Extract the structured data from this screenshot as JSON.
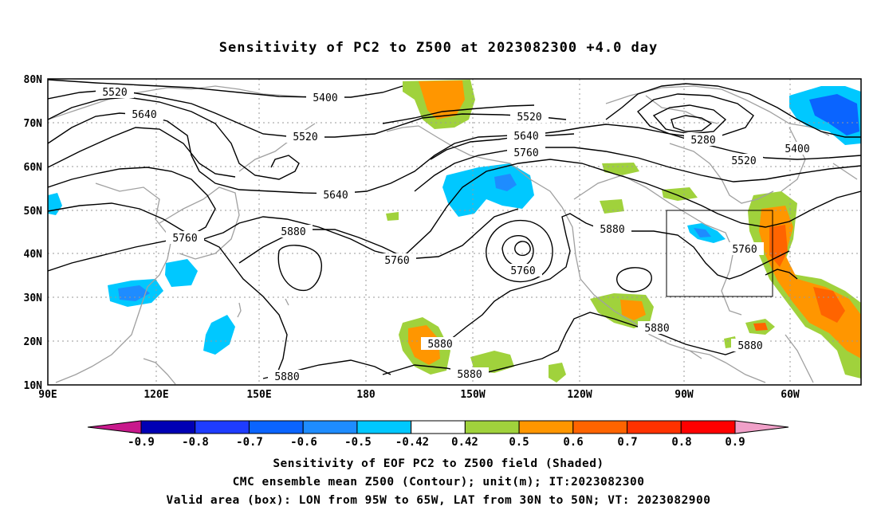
{
  "title": "Sensitivity of PC2 to Z500 at 2023082300 +4.0 day",
  "lat_labels": [
    "80N",
    "70N",
    "60N",
    "50N",
    "40N",
    "30N",
    "20N",
    "10N"
  ],
  "lon_labels": [
    "90E",
    "120E",
    "150E",
    "180",
    "150W",
    "120W",
    "90W",
    "60W"
  ],
  "contour_labels": [
    {
      "text": "5520"
    },
    {
      "text": "5400"
    },
    {
      "text": "5640"
    },
    {
      "text": "5520"
    },
    {
      "text": "5520"
    },
    {
      "text": "5640"
    },
    {
      "text": "5760"
    },
    {
      "text": "5280"
    },
    {
      "text": "5400"
    },
    {
      "text": "5520"
    },
    {
      "text": "5640"
    },
    {
      "text": "5760"
    },
    {
      "text": "5880"
    },
    {
      "text": "5880"
    },
    {
      "text": "5760"
    },
    {
      "text": "5760"
    },
    {
      "text": "5760"
    },
    {
      "text": "5880"
    },
    {
      "text": "5880"
    },
    {
      "text": "5880"
    },
    {
      "text": "5880"
    },
    {
      "text": "5880"
    }
  ],
  "colorbar": {
    "labels": [
      "-0.9",
      "-0.8",
      "-0.7",
      "-0.6",
      "-0.5",
      "-0.42",
      "0.42",
      "0.5",
      "0.6",
      "0.7",
      "0.8",
      "0.9"
    ],
    "colors": [
      "#0000b4",
      "#1e3cff",
      "#0a64ff",
      "#1e8cff",
      "#00c8ff",
      "#ffffff",
      "#a0d23c",
      "#ff9600",
      "#ff6400",
      "#ff3200",
      "#ff0000"
    ],
    "low_extend_color": "#c8198c",
    "high_extend_color": "#f0a0c8"
  },
  "footer": {
    "line1": "Sensitivity of EOF PC2 to Z500 field (Shaded)",
    "line2": "CMC ensemble mean Z500 (Contour); unit(m); IT:2023082300",
    "line3": "Valid area (box): LON from 95W to 65W, LAT from 30N to 50N; VT: 2023082900"
  }
}
